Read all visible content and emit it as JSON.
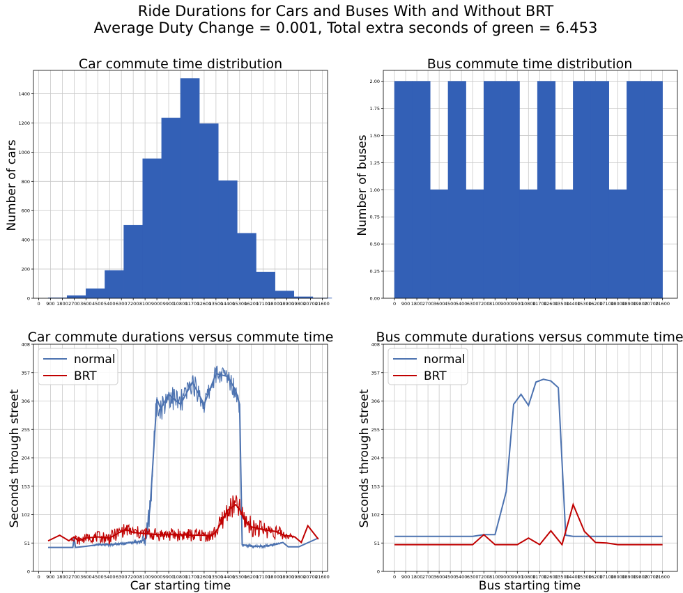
{
  "figure": {
    "title_line1": "Ride Durations for Cars and Buses With and Without BRT",
    "title_line2": "Average Duty Change = 0.001, Total extra seconds of green = 6.453"
  },
  "colors": {
    "bar": "#3360b6",
    "normal": "#4c72b0",
    "brt": "#c00000",
    "grid": "#c8c8c8"
  },
  "chart_data": [
    {
      "type": "bar",
      "title": "Car commute time distribution",
      "xlabel": "",
      "ylabel": "Number of cars",
      "xlim": [
        -400,
        22000
      ],
      "ylim": [
        0,
        1560
      ],
      "x_ticks": [
        0,
        900,
        1800,
        2700,
        3600,
        4500,
        5400,
        6300,
        7200,
        8100,
        9000,
        9900,
        10800,
        11700,
        12600,
        13500,
        14400,
        15300,
        16200,
        17100,
        18000,
        18900,
        19800,
        20700,
        21600
      ],
      "y_ticks": [
        0,
        200,
        400,
        600,
        800,
        1000,
        1200,
        1400
      ],
      "y_tick_labels": [
        "0",
        "200",
        "400",
        "600",
        "800",
        "1000",
        "1200",
        "1400"
      ],
      "bin_edges": [
        720,
        2160,
        3600,
        5040,
        6480,
        7920,
        9360,
        10800,
        12240,
        13680,
        15120,
        16560,
        18000,
        19440,
        20880
      ],
      "values": [
        3,
        18,
        65,
        190,
        500,
        955,
        1235,
        1505,
        1195,
        805,
        445,
        180,
        50,
        10,
        2
      ],
      "grid": true
    },
    {
      "type": "bar",
      "title": "Bus commute time distribution",
      "xlabel": "",
      "ylabel": "Number of buses",
      "xlim": [
        -900,
        22800
      ],
      "ylim": [
        0,
        2.1
      ],
      "x_ticks": [
        0,
        900,
        1800,
        2700,
        3600,
        4500,
        5400,
        6300,
        7200,
        8100,
        9000,
        9900,
        10800,
        11700,
        12600,
        13500,
        14400,
        15300,
        16200,
        17100,
        18000,
        18900,
        19800,
        20700,
        21600
      ],
      "y_ticks": [
        0,
        0.25,
        0.5,
        0.75,
        1.0,
        1.25,
        1.5,
        1.75,
        2.0
      ],
      "y_tick_labels": [
        "0.00",
        "0.25",
        "0.50",
        "0.75",
        "1.00",
        "1.25",
        "1.50",
        "1.75",
        "2.00"
      ],
      "bin_edges": [
        0,
        1440,
        2880,
        4320,
        5760,
        7200,
        8640,
        10080,
        11520,
        12960,
        14400,
        15840,
        17280,
        18720,
        20160,
        21600
      ],
      "values": [
        2,
        2,
        1,
        2,
        1,
        2,
        2,
        1,
        2,
        1,
        2,
        2,
        1,
        2,
        2
      ],
      "grid": true
    },
    {
      "type": "line",
      "title": "Car commute durations versus commute time",
      "xlabel": "Car starting time",
      "ylabel": "Seconds through street",
      "xlim": [
        -400,
        22000
      ],
      "ylim": [
        0,
        408
      ],
      "x_ticks": [
        0,
        900,
        1800,
        2700,
        3600,
        4500,
        5400,
        6300,
        7200,
        8100,
        9000,
        9900,
        10800,
        11700,
        12600,
        13500,
        14400,
        15300,
        16200,
        17100,
        18000,
        18900,
        19800,
        20700,
        21600
      ],
      "y_ticks": [
        0,
        51,
        102,
        153,
        204,
        255,
        306,
        357,
        408
      ],
      "y_tick_labels": [
        "0",
        "51",
        "102",
        "153",
        "204",
        "255",
        "306",
        "357",
        "408"
      ],
      "legend": {
        "position": "top-left",
        "entries": [
          "normal",
          "BRT"
        ]
      },
      "series": [
        {
          "name": "normal",
          "x": [
            720,
            1800,
            2600,
            2700,
            2800,
            3600,
            4500,
            5400,
            6300,
            7200,
            7800,
            8200,
            8500,
            9000,
            9300,
            9900,
            10800,
            11700,
            12600,
            13500,
            14400,
            15000,
            15300,
            15500,
            16200,
            17100,
            18000,
            18600,
            19000,
            19800,
            21300
          ],
          "y": [
            43,
            43,
            43,
            60,
            43,
            45,
            48,
            48,
            50,
            52,
            54,
            60,
            120,
            310,
            292,
            318,
            300,
            340,
            300,
            355,
            350,
            325,
            300,
            48,
            45,
            45,
            48,
            52,
            44,
            44,
            60
          ],
          "jitter": [
            0,
            0,
            0,
            0,
            0,
            0,
            2,
            3,
            3,
            3,
            5,
            25,
            30,
            25,
            25,
            25,
            25,
            20,
            20,
            18,
            18,
            20,
            20,
            4,
            3,
            3,
            3,
            0,
            0,
            0,
            0
          ]
        },
        {
          "name": "BRT",
          "x": [
            720,
            1600,
            2300,
            2700,
            3000,
            3600,
            4500,
            5400,
            6300,
            6700,
            7200,
            8100,
            9000,
            9900,
            10800,
            11700,
            12600,
            13200,
            13600,
            14400,
            15000,
            15300,
            15600,
            16200,
            17100,
            18000,
            18700,
            19500,
            20000,
            20500,
            21300
          ],
          "y": [
            55,
            65,
            55,
            62,
            55,
            60,
            62,
            60,
            72,
            75,
            70,
            68,
            66,
            66,
            66,
            65,
            65,
            64,
            75,
            110,
            120,
            112,
            95,
            80,
            75,
            72,
            65,
            62,
            52,
            82,
            58
          ],
          "jitter": [
            0,
            0,
            0,
            8,
            8,
            8,
            10,
            12,
            12,
            12,
            12,
            12,
            12,
            12,
            12,
            12,
            12,
            12,
            15,
            20,
            20,
            20,
            20,
            18,
            15,
            15,
            10,
            0,
            0,
            0,
            0
          ]
        }
      ],
      "grid": true
    },
    {
      "type": "line",
      "title": "Bus commute durations versus commute time",
      "xlabel": "Bus starting time",
      "ylabel": "Seconds through street",
      "xlim": [
        -900,
        22800
      ],
      "ylim": [
        0,
        408
      ],
      "x_ticks": [
        0,
        900,
        1800,
        2700,
        3600,
        4500,
        5400,
        6300,
        7200,
        8100,
        9000,
        9900,
        10800,
        11700,
        12600,
        13500,
        14400,
        15300,
        16200,
        17100,
        18000,
        18900,
        19800,
        20700,
        21600
      ],
      "y_ticks": [
        0,
        51,
        102,
        153,
        204,
        255,
        306,
        357,
        408
      ],
      "y_tick_labels": [
        "0",
        "51",
        "102",
        "153",
        "204",
        "255",
        "306",
        "357",
        "408"
      ],
      "legend": {
        "position": "top-left",
        "entries": [
          "normal",
          "BRT"
        ]
      },
      "series": [
        {
          "name": "normal",
          "x": [
            0,
            900,
            1800,
            2700,
            3600,
            4500,
            5400,
            6300,
            7200,
            8100,
            9000,
            9600,
            10200,
            10800,
            11400,
            12000,
            12600,
            13200,
            13800,
            14400,
            15000,
            15300,
            16200,
            17100,
            18000,
            18900,
            19800,
            20700,
            21600
          ],
          "y": [
            63,
            63,
            63,
            63,
            63,
            63,
            63,
            63,
            66,
            66,
            143,
            300,
            318,
            298,
            340,
            345,
            342,
            330,
            65,
            63,
            63,
            63,
            63,
            63,
            63,
            63,
            63,
            63,
            63
          ],
          "jitter": []
        },
        {
          "name": "BRT",
          "x": [
            0,
            900,
            1800,
            2700,
            3600,
            4500,
            5400,
            6300,
            7200,
            8100,
            9000,
            9900,
            10800,
            11700,
            12600,
            13500,
            14400,
            15300,
            16200,
            17100,
            18000,
            18900,
            19800,
            20700,
            21600
          ],
          "y": [
            48,
            48,
            48,
            48,
            48,
            48,
            48,
            48,
            66,
            48,
            48,
            48,
            60,
            48,
            73,
            48,
            120,
            72,
            52,
            51,
            48,
            48,
            48,
            48,
            48
          ],
          "jitter": []
        }
      ],
      "grid": true
    }
  ]
}
